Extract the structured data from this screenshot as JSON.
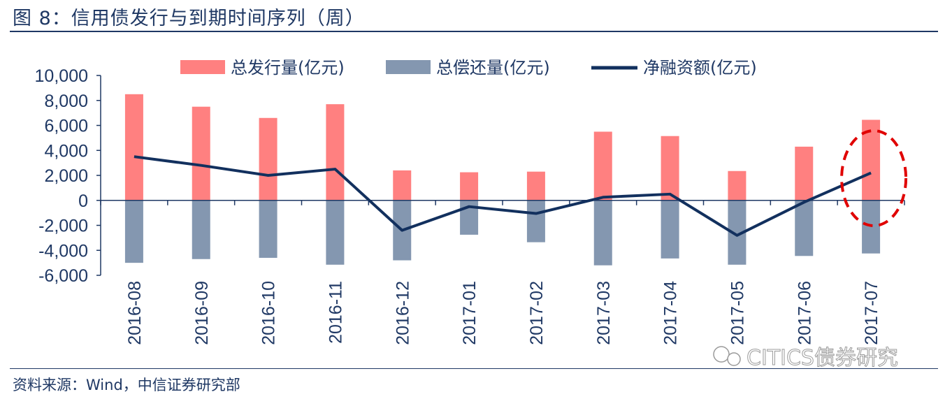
{
  "figure": {
    "title": "图 8：信用债发行与到期时间序列（周）",
    "source": "资料来源：Wind，中信证券研究部",
    "watermark": "CITICS债券研究"
  },
  "colors": {
    "issuance": "#ff8080",
    "repayment": "#8497b0",
    "net": "#12305e",
    "axis": "#1f3864",
    "highlight": "#e00000"
  },
  "chart_data": {
    "type": "bar",
    "title": "",
    "xlabel": "",
    "ylabel": "",
    "ylim": [
      -6000,
      10000
    ],
    "yticks": [
      10000,
      8000,
      6000,
      4000,
      2000,
      0,
      -2000,
      -4000,
      -6000
    ],
    "ytick_labels": [
      "10,000",
      "8,000",
      "6,000",
      "4,000",
      "2,000",
      "0",
      "-2,000",
      "-4,000",
      "-6,000"
    ],
    "categories": [
      "2016-08",
      "2016-09",
      "2016-10",
      "2016-11",
      "2016-12",
      "2017-01",
      "2017-02",
      "2017-03",
      "2017-04",
      "2017-05",
      "2017-06",
      "2017-07"
    ],
    "series": [
      {
        "name": "总发行量(亿元)",
        "type": "bar",
        "values": [
          8500,
          7500,
          6600,
          7700,
          2400,
          2250,
          2300,
          5500,
          5150,
          2350,
          4300,
          6450
        ]
      },
      {
        "name": "总偿还量(亿元)",
        "type": "bar",
        "values": [
          -5000,
          -4700,
          -4600,
          -5150,
          -4800,
          -2750,
          -3350,
          -5200,
          -4650,
          -5150,
          -4450,
          -4250
        ]
      },
      {
        "name": "净融资额(亿元)",
        "type": "line",
        "values": [
          3500,
          2800,
          2000,
          2500,
          -2400,
          -500,
          -1050,
          250,
          500,
          -2800,
          -150,
          2200
        ]
      }
    ],
    "annotations": [
      {
        "type": "dashed-ellipse",
        "category": "2017-07"
      }
    ]
  }
}
